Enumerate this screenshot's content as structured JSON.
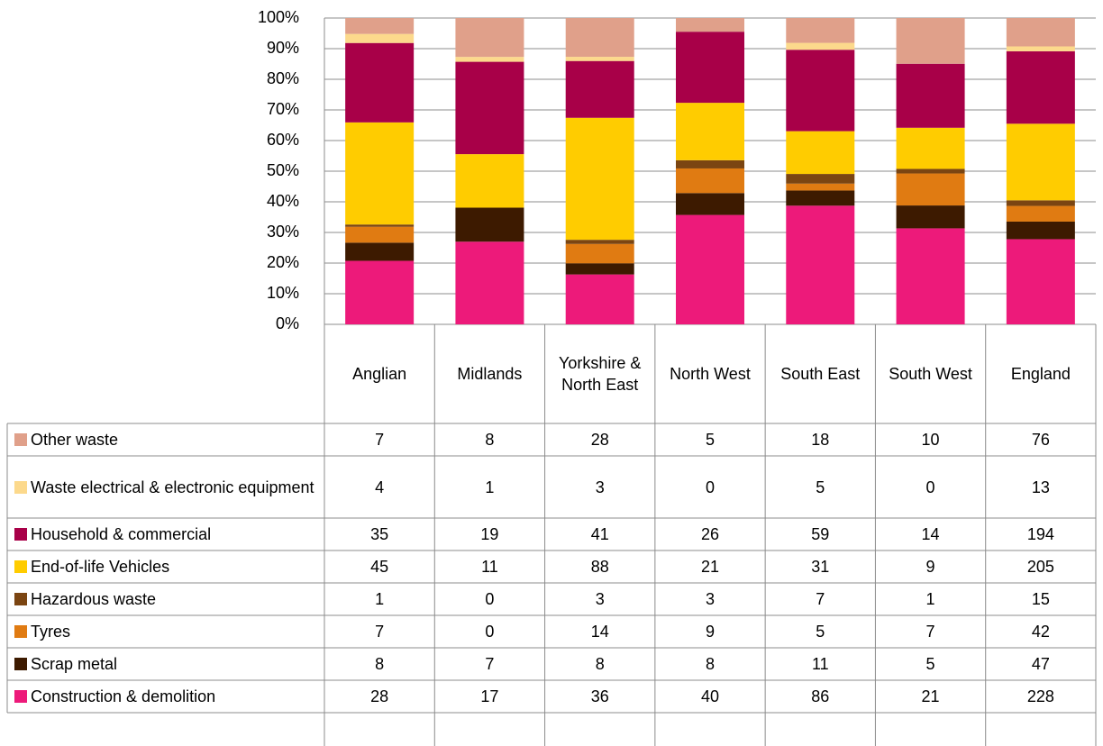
{
  "chart_data": {
    "type": "bar",
    "stacking": "percent",
    "grid": true,
    "categories": [
      "Anglian",
      "Midlands",
      "Yorkshire & North East",
      "North West",
      "South East",
      "South West",
      "England"
    ],
    "ylim": [
      0,
      100
    ],
    "yticks": [
      {
        "value": 0,
        "label": "0%"
      },
      {
        "value": 10,
        "label": "10%"
      },
      {
        "value": 20,
        "label": "20%"
      },
      {
        "value": 30,
        "label": "30%"
      },
      {
        "value": 40,
        "label": "40%"
      },
      {
        "value": 50,
        "label": "50%"
      },
      {
        "value": 60,
        "label": "60%"
      },
      {
        "value": 70,
        "label": "70%"
      },
      {
        "value": 80,
        "label": "80%"
      },
      {
        "value": 90,
        "label": "90%"
      },
      {
        "value": 100,
        "label": "100%"
      }
    ],
    "series": [
      {
        "name": "Construction & demolition",
        "color": "#ed1a7a",
        "values": [
          28,
          17,
          36,
          40,
          86,
          21,
          228
        ]
      },
      {
        "name": "Scrap metal",
        "color": "#3d1a00",
        "values": [
          8,
          7,
          8,
          8,
          11,
          5,
          47
        ]
      },
      {
        "name": "Tyres",
        "color": "#e07b12",
        "values": [
          7,
          0,
          14,
          9,
          5,
          7,
          42
        ]
      },
      {
        "name": "Hazardous waste",
        "color": "#7b4512",
        "values": [
          1,
          0,
          3,
          3,
          7,
          1,
          15
        ]
      },
      {
        "name": "End-of-life Vehicles",
        "color": "#ffcc00",
        "values": [
          45,
          11,
          88,
          21,
          31,
          9,
          205
        ]
      },
      {
        "name": "Household & commercial",
        "color": "#a80048",
        "values": [
          35,
          19,
          41,
          26,
          59,
          14,
          194
        ]
      },
      {
        "name": "Waste electrical & electronic equipment",
        "color": "#fcd98c",
        "values": [
          4,
          1,
          3,
          0,
          5,
          0,
          13
        ]
      },
      {
        "name": "Other waste",
        "color": "#e0a08a",
        "values": [
          7,
          8,
          28,
          5,
          18,
          10,
          76
        ]
      }
    ]
  }
}
